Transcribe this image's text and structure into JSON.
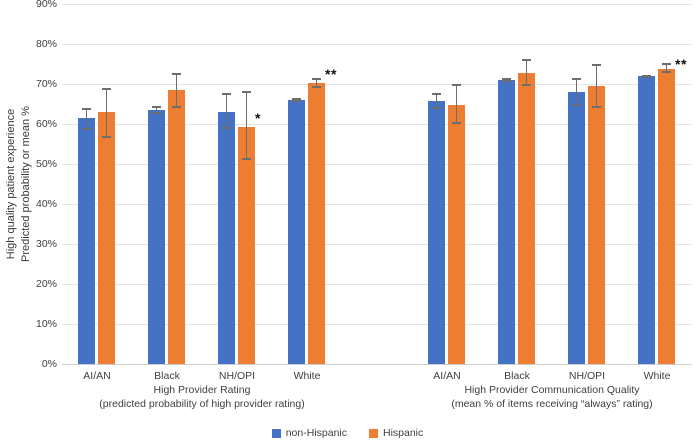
{
  "figure": {
    "y_axis_title_line1": "High quality patient experience",
    "y_axis_title_line2": "Predicted probability or mean %"
  },
  "chart_data": {
    "type": "bar",
    "title": "",
    "ylabel": "High quality patient experience Predicted probability or mean %",
    "xlabel": "",
    "ylim": [
      0,
      90
    ],
    "ytick_step": 10,
    "ytick_suffix": "%",
    "grid": true,
    "legend_position": "bottom",
    "series_names": [
      "non-Hispanic",
      "Hispanic"
    ],
    "series_colors": [
      "#4472C4",
      "#ED7D31"
    ],
    "error_bar_color": "#6e6e6e",
    "groups": [
      {
        "label": "High Provider Rating",
        "sublabel": "(predicted probability of high provider rating)",
        "categories": [
          "AI/AN",
          "Black",
          "NH/OPI",
          "White"
        ],
        "series": [
          {
            "name": "non-Hispanic",
            "values": [
              61.5,
              63.6,
              63.0,
              66.0
            ],
            "err_low": [
              58.5,
              62.5,
              58.8,
              65.6
            ],
            "err_high": [
              64.0,
              64.4,
              67.8,
              66.4
            ]
          },
          {
            "name": "Hispanic",
            "values": [
              63.0,
              68.5,
              59.3,
              70.3
            ],
            "err_low": [
              56.5,
              64.0,
              51.0,
              69.0
            ],
            "err_high": [
              69.0,
              72.8,
              68.3,
              71.5
            ]
          }
        ],
        "annotations": [
          {
            "text": "*",
            "category_index": 2,
            "series": "Hispanic",
            "y": 62
          },
          {
            "text": "**",
            "category_index": 3,
            "series": "Hispanic",
            "y": 73
          }
        ]
      },
      {
        "label": "High Provider Communication Quality",
        "sublabel": "(mean % of items receiving “always” rating)",
        "categories": [
          "AI/AN",
          "Black",
          "NH/OPI",
          "White"
        ],
        "series": [
          {
            "name": "non-Hispanic",
            "values": [
              65.8,
              71.0,
              67.9,
              71.9
            ],
            "err_low": [
              63.8,
              70.5,
              64.4,
              71.5
            ],
            "err_high": [
              67.8,
              71.6,
              71.5,
              72.3
            ]
          },
          {
            "name": "Hispanic",
            "values": [
              64.8,
              72.8,
              69.4,
              73.8
            ],
            "err_low": [
              60.1,
              69.4,
              64.0,
              72.8
            ],
            "err_high": [
              70.0,
              76.3,
              75.1,
              75.3
            ]
          }
        ],
        "annotations": [
          {
            "text": "**",
            "category_index": 3,
            "series": "Hispanic",
            "y": 75.5
          }
        ]
      }
    ]
  }
}
